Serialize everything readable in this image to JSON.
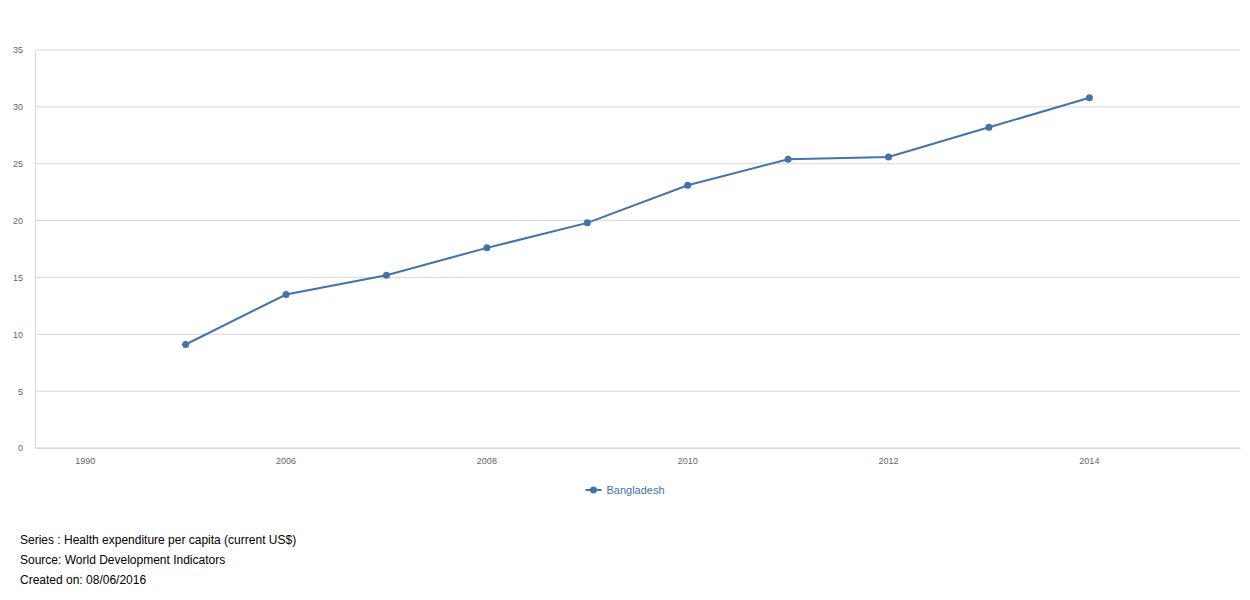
{
  "chart_data": {
    "type": "line",
    "categories": [
      "1990",
      null,
      "2006",
      null,
      "2008",
      null,
      "2010",
      null,
      "2012",
      null,
      "2014",
      null
    ],
    "series": [
      {
        "name": "Bangladesh",
        "color": "#4572a7",
        "marker": "circle",
        "values": [
          null,
          9.1,
          13.5,
          15.2,
          17.6,
          19.8,
          23.1,
          25.4,
          25.6,
          28.2,
          30.8,
          null
        ]
      }
    ],
    "ylim": [
      0,
      35
    ],
    "yticks": [
      0,
      5,
      10,
      15,
      20,
      25,
      30,
      35
    ],
    "grid": true,
    "legend": "bottom",
    "annotations": [
      "Series : Health expenditure per capita (current US$)",
      "Source: World Development Indicators",
      "Created on: 08/06/2016"
    ]
  }
}
